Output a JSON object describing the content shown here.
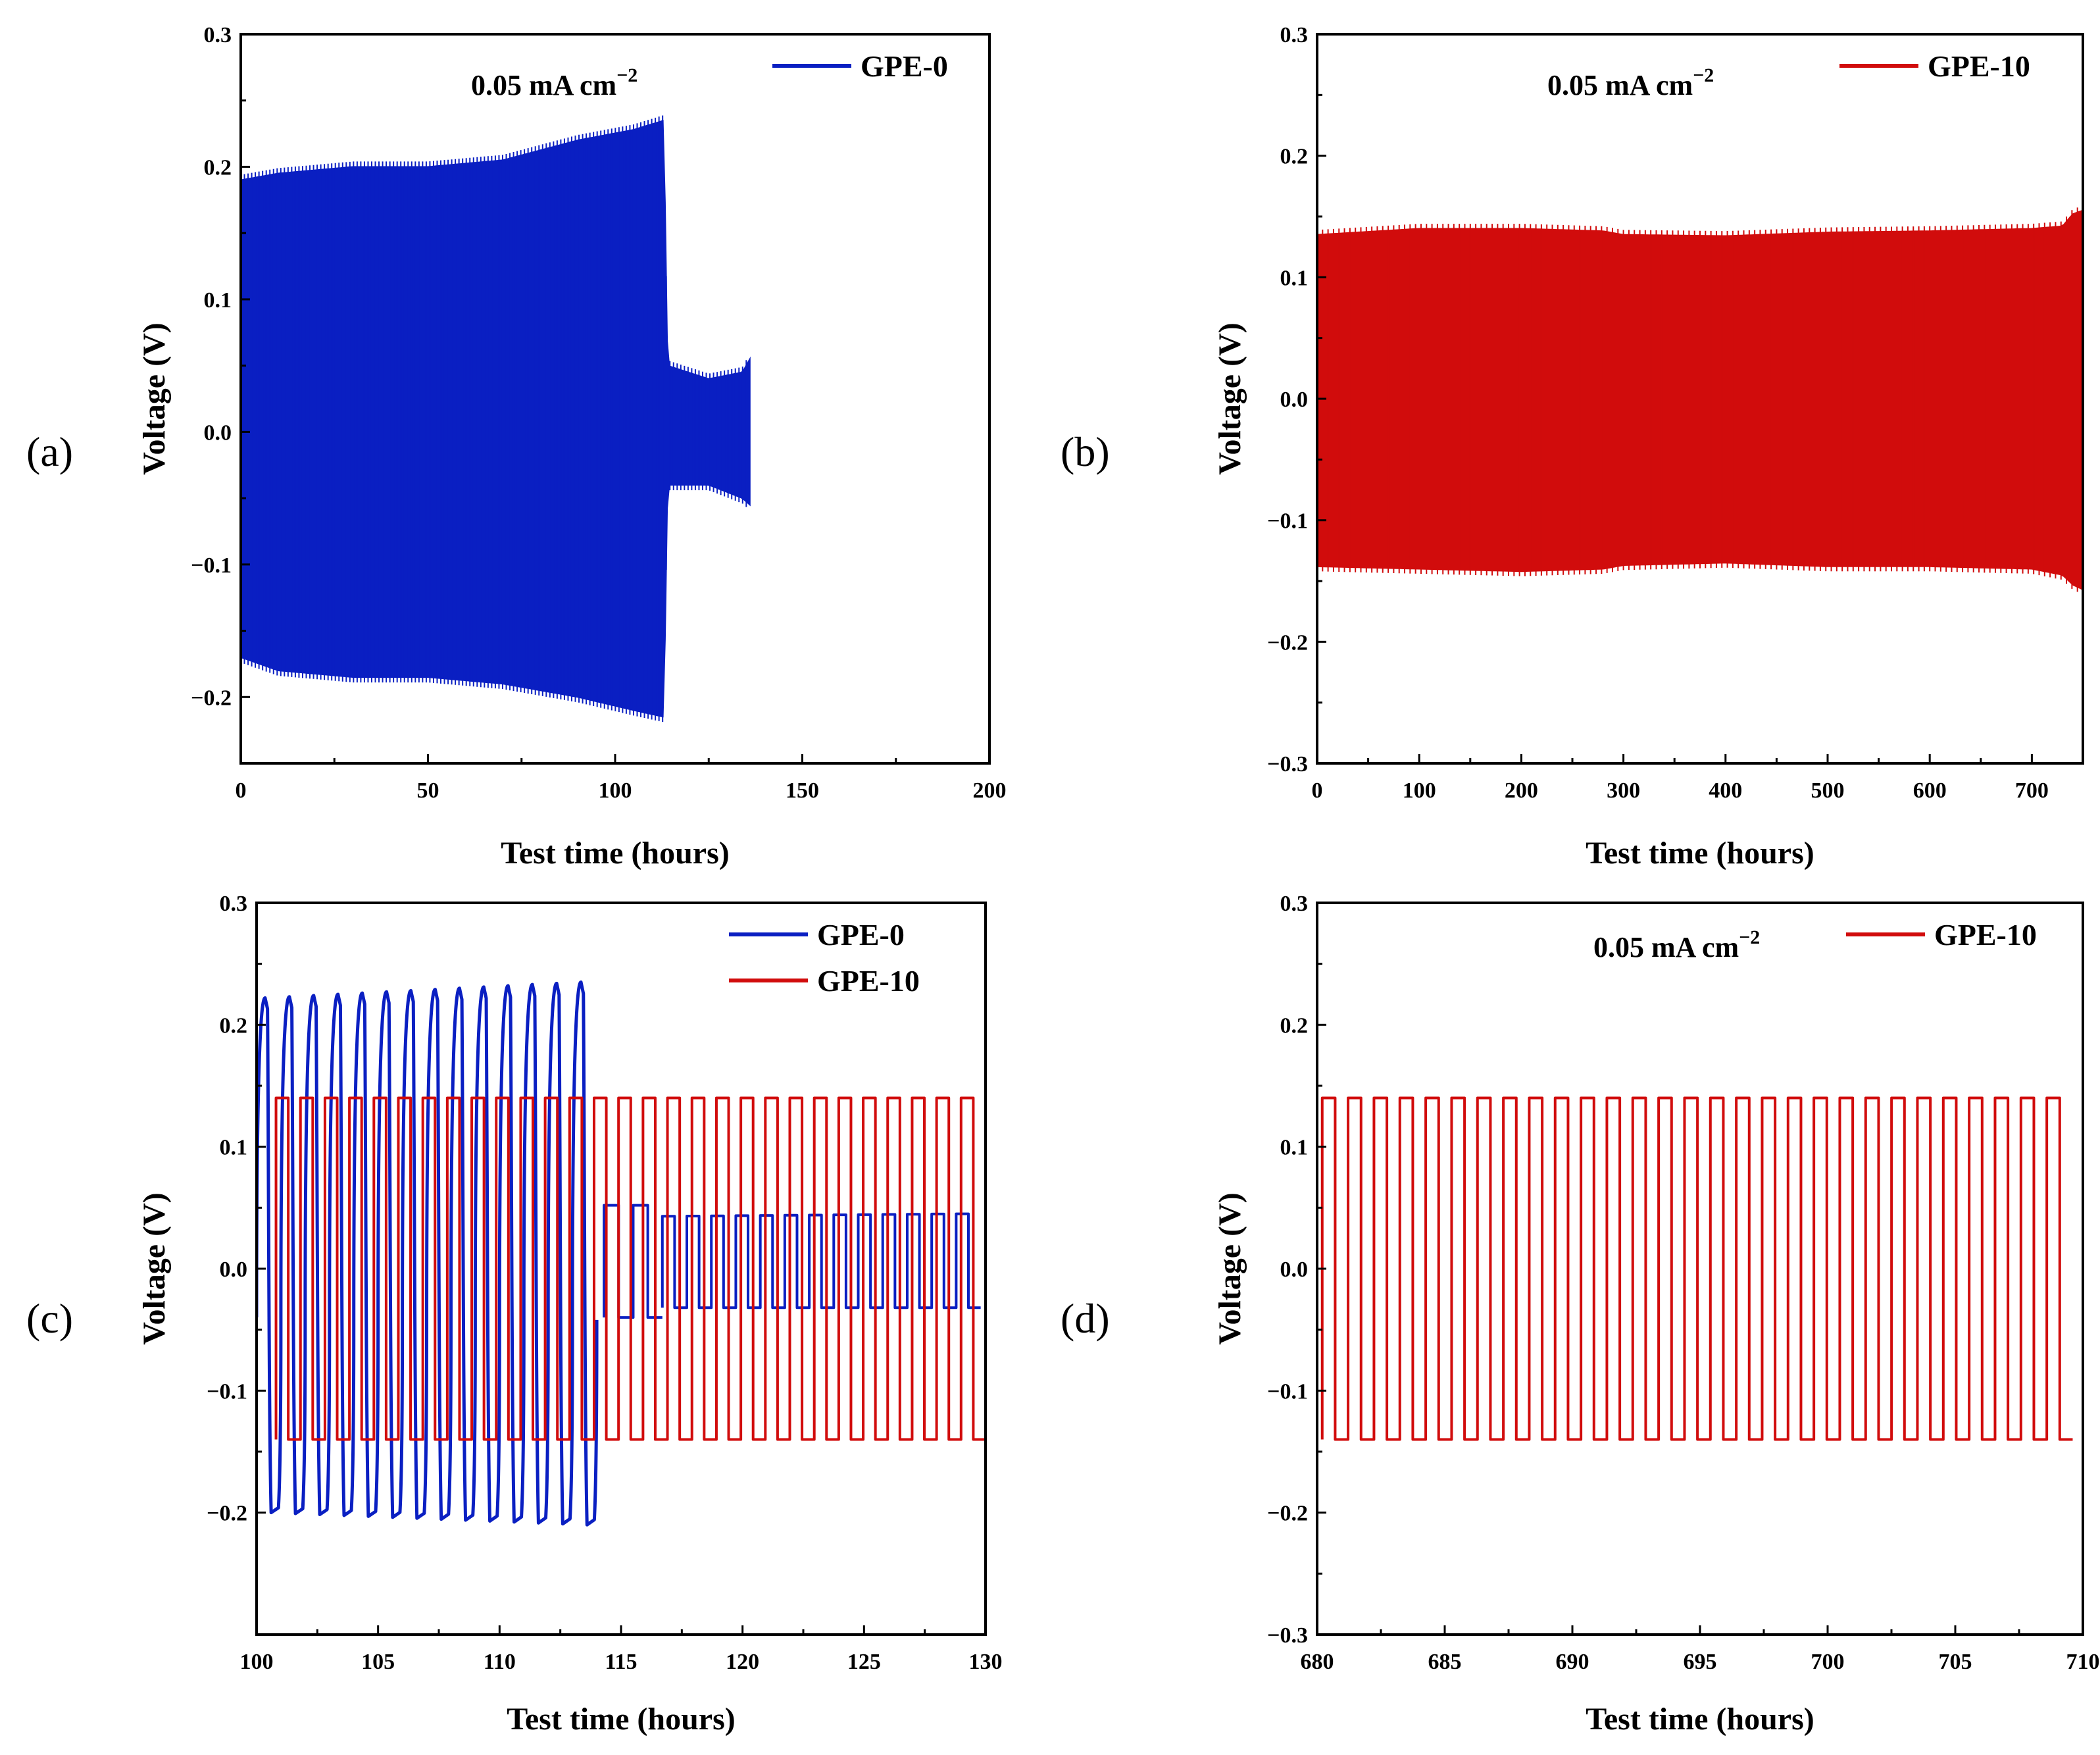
{
  "colors": {
    "gpe0": "#0a1fc2",
    "gpe10": "#d10c0c"
  },
  "chart_data": [
    {
      "id": "a",
      "type": "line",
      "panel_label": "(a)",
      "xlabel": "Test time (hours)",
      "ylabel": "Voltage (V)",
      "xlim": [
        0,
        200
      ],
      "ylim": [
        -0.25,
        0.3
      ],
      "xticks": [
        0,
        50,
        100,
        150,
        200
      ],
      "yticks": [
        -0.2,
        -0.1,
        0.0,
        0.1,
        0.2,
        0.3
      ],
      "annotation": {
        "text": "0.05 mA cm",
        "sup": "−2"
      },
      "legend": [
        {
          "name": "GPE-0",
          "color": "#0a1fc2"
        }
      ],
      "series": [
        {
          "name": "GPE-0",
          "color": "#0a1fc2",
          "style": "dense_band",
          "envelope_upper": [
            [
              0,
              0.19
            ],
            [
              10,
              0.195
            ],
            [
              30,
              0.2
            ],
            [
              50,
              0.2
            ],
            [
              70,
              0.205
            ],
            [
              90,
              0.22
            ],
            [
              105,
              0.228
            ],
            [
              113,
              0.235
            ],
            [
              114,
              0.05
            ],
            [
              125,
              0.04
            ],
            [
              134,
              0.045
            ],
            [
              136,
              0.055
            ]
          ],
          "envelope_lower": [
            [
              0,
              -0.17
            ],
            [
              10,
              -0.18
            ],
            [
              30,
              -0.185
            ],
            [
              50,
              -0.185
            ],
            [
              70,
              -0.19
            ],
            [
              90,
              -0.2
            ],
            [
              105,
              -0.21
            ],
            [
              113,
              -0.215
            ],
            [
              114,
              -0.04
            ],
            [
              125,
              -0.04
            ],
            [
              134,
              -0.05
            ],
            [
              136,
              -0.055
            ]
          ]
        }
      ]
    },
    {
      "id": "b",
      "type": "line",
      "panel_label": "(b)",
      "xlabel": "Test time (hours)",
      "ylabel": "Voltage (V)",
      "xlim": [
        0,
        750
      ],
      "ylim": [
        -0.3,
        0.3
      ],
      "xticks": [
        0,
        100,
        200,
        300,
        400,
        500,
        600,
        700
      ],
      "yticks": [
        -0.3,
        -0.2,
        -0.1,
        0.0,
        0.1,
        0.2,
        0.3
      ],
      "annotation": {
        "text": "0.05 mA cm",
        "sup": "−2"
      },
      "legend": [
        {
          "name": "GPE-10",
          "color": "#d10c0c"
        }
      ],
      "series": [
        {
          "name": "GPE-10",
          "color": "#d10c0c",
          "style": "dense_band",
          "envelope_upper": [
            [
              0,
              0.135
            ],
            [
              100,
              0.14
            ],
            [
              200,
              0.14
            ],
            [
              280,
              0.138
            ],
            [
              300,
              0.135
            ],
            [
              400,
              0.134
            ],
            [
              500,
              0.137
            ],
            [
              600,
              0.138
            ],
            [
              700,
              0.14
            ],
            [
              730,
              0.142
            ],
            [
              740,
              0.152
            ],
            [
              750,
              0.155
            ]
          ],
          "envelope_lower": [
            [
              0,
              -0.138
            ],
            [
              100,
              -0.14
            ],
            [
              200,
              -0.142
            ],
            [
              280,
              -0.14
            ],
            [
              300,
              -0.137
            ],
            [
              400,
              -0.135
            ],
            [
              500,
              -0.138
            ],
            [
              600,
              -0.138
            ],
            [
              700,
              -0.14
            ],
            [
              730,
              -0.145
            ],
            [
              740,
              -0.153
            ],
            [
              750,
              -0.157
            ]
          ]
        }
      ]
    },
    {
      "id": "c",
      "type": "line",
      "panel_label": "(c)",
      "xlabel": "Test time (hours)",
      "ylabel": "Voltage (V)",
      "xlim": [
        100,
        130
      ],
      "ylim": [
        -0.3,
        0.3
      ],
      "xticks": [
        100,
        105,
        110,
        115,
        120,
        125,
        130
      ],
      "yticks": [
        -0.2,
        -0.1,
        0.0,
        0.1,
        0.2,
        0.3
      ],
      "legend": [
        {
          "name": "GPE-0",
          "color": "#0a1fc2"
        },
        {
          "name": "GPE-10",
          "color": "#d10c0c"
        }
      ],
      "series": [
        {
          "name": "GPE-0",
          "color": "#0a1fc2",
          "style": "cycling",
          "period_h": 1,
          "segments": [
            {
              "x": [
                100,
                114
              ],
              "vmax": [
                0.222,
                0.235
              ],
              "vmin": [
                -0.2,
                -0.21
              ],
              "shape": "smooth"
            },
            {
              "x": [
                114.3,
                116.7
              ],
              "vmax": [
                0.052,
                0.052
              ],
              "vmin": [
                -0.04,
                -0.04
              ],
              "shape": "square"
            },
            {
              "x": [
                116.7,
                129.8
              ],
              "vmax": [
                0.043,
                0.045
              ],
              "vmin": [
                -0.032,
                -0.032
              ],
              "shape": "square"
            }
          ]
        },
        {
          "name": "GPE-10",
          "color": "#d10c0c",
          "style": "cycling",
          "period_h": 1,
          "segments": [
            {
              "x": [
                100.8,
                130
              ],
              "vmax": [
                0.14,
                0.14
              ],
              "vmin": [
                -0.14,
                -0.14
              ],
              "shape": "square"
            }
          ]
        }
      ]
    },
    {
      "id": "d",
      "type": "line",
      "panel_label": "(d)",
      "xlabel": "Test time (hours)",
      "ylabel": "Voltage (V)",
      "xlim": [
        680,
        710
      ],
      "ylim": [
        -0.3,
        0.3
      ],
      "xticks": [
        680,
        685,
        690,
        695,
        700,
        705,
        710
      ],
      "yticks": [
        -0.3,
        -0.2,
        -0.1,
        0.0,
        0.1,
        0.2,
        0.3
      ],
      "annotation": {
        "text": "0.05 mA cm",
        "sup": "−2"
      },
      "legend": [
        {
          "name": "GPE-10",
          "color": "#d10c0c"
        }
      ],
      "series": [
        {
          "name": "GPE-10",
          "color": "#d10c0c",
          "style": "cycling",
          "period_h": 1,
          "segments": [
            {
              "x": [
                680.2,
                709.6
              ],
              "vmax": [
                0.14,
                0.14
              ],
              "vmin": [
                -0.14,
                -0.14
              ],
              "shape": "square"
            }
          ]
        }
      ]
    }
  ]
}
